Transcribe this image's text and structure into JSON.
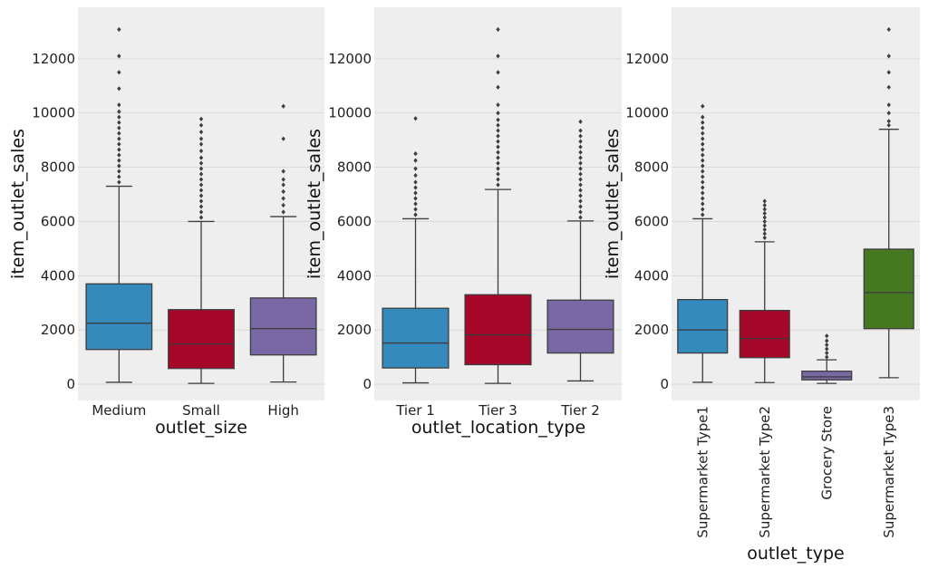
{
  "chart_data": [
    {
      "type": "box",
      "xlabel": "outlet_size",
      "ylabel": "item_outlet_sales",
      "ylim": [
        -600,
        13900
      ],
      "yticks": [
        0,
        2000,
        4000,
        6000,
        8000,
        10000,
        12000
      ],
      "grid": true,
      "categories": [
        "Medium",
        "Small",
        "High"
      ],
      "boxes": [
        {
          "category": "Medium",
          "color": "#348abd",
          "min": 70,
          "q1": 1280,
          "median": 2250,
          "q3": 3700,
          "max": 7300,
          "outliers": [
            7450,
            7650,
            7850,
            8050,
            8250,
            8450,
            8650,
            8850,
            9050,
            9250,
            9450,
            9650,
            9850,
            10050,
            10300,
            10900,
            11500,
            12100,
            13080
          ]
        },
        {
          "category": "Small",
          "color": "#a60628",
          "min": 30,
          "q1": 580,
          "median": 1480,
          "q3": 2750,
          "max": 6000,
          "outliers": [
            6150,
            6350,
            6550,
            6750,
            6950,
            7150,
            7350,
            7550,
            7750,
            7950,
            8150,
            8350,
            8600,
            8850,
            9050,
            9300,
            9550,
            9780
          ]
        },
        {
          "category": "High",
          "color": "#7a68a6",
          "min": 80,
          "q1": 1080,
          "median": 2050,
          "q3": 3180,
          "max": 6180,
          "outliers": [
            6350,
            6600,
            6850,
            7100,
            7350,
            7550,
            7850,
            9050,
            10250
          ]
        }
      ]
    },
    {
      "type": "box",
      "xlabel": "outlet_location_type",
      "ylabel": "item_outlet_sales",
      "ylim": [
        -600,
        13900
      ],
      "yticks": [
        0,
        2000,
        4000,
        6000,
        8000,
        10000,
        12000
      ],
      "grid": true,
      "categories": [
        "Tier 1",
        "Tier 3",
        "Tier 2"
      ],
      "boxes": [
        {
          "category": "Tier 1",
          "color": "#348abd",
          "min": 50,
          "q1": 600,
          "median": 1520,
          "q3": 2800,
          "max": 6100,
          "outliers": [
            6250,
            6450,
            6650,
            6850,
            7050,
            7250,
            7450,
            7700,
            7950,
            8250,
            8500,
            9800
          ]
        },
        {
          "category": "Tier 3",
          "color": "#a60628",
          "min": 30,
          "q1": 720,
          "median": 1820,
          "q3": 3300,
          "max": 7180,
          "outliers": [
            7350,
            7550,
            7750,
            7950,
            8150,
            8350,
            8550,
            8750,
            8950,
            9150,
            9350,
            9550,
            9750,
            10000,
            10300,
            10950,
            11500,
            12100,
            13080
          ]
        },
        {
          "category": "Tier 2",
          "color": "#7a68a6",
          "min": 120,
          "q1": 1150,
          "median": 2020,
          "q3": 3100,
          "max": 6020,
          "outliers": [
            6150,
            6350,
            6550,
            6750,
            6950,
            7150,
            7350,
            7550,
            7750,
            7950,
            8150,
            8350,
            8550,
            8750,
            8950,
            9150,
            9350,
            9680
          ]
        }
      ]
    },
    {
      "type": "box",
      "xlabel": "outlet_type",
      "ylabel": "item_outlet_sales",
      "ylim": [
        -600,
        13900
      ],
      "yticks": [
        0,
        2000,
        4000,
        6000,
        8000,
        10000,
        12000
      ],
      "grid": true,
      "categories": [
        "Supermarket Type1",
        "Supermarket Type2",
        "Grocery Store",
        "Supermarket Type3"
      ],
      "boxes": [
        {
          "category": "Supermarket Type1",
          "color": "#348abd",
          "min": 70,
          "q1": 1150,
          "median": 2000,
          "q3": 3120,
          "max": 6100,
          "outliers": [
            6250,
            6450,
            6650,
            6850,
            7050,
            7250,
            7450,
            7650,
            7850,
            8050,
            8250,
            8450,
            8650,
            8850,
            9050,
            9250,
            9450,
            9650,
            9850,
            10250
          ]
        },
        {
          "category": "Supermarket Type2",
          "color": "#a60628",
          "min": 60,
          "q1": 980,
          "median": 1680,
          "q3": 2720,
          "max": 5250,
          "outliers": [
            5400,
            5550,
            5700,
            5850,
            6000,
            6150,
            6300,
            6450,
            6600,
            6750
          ]
        },
        {
          "category": "Grocery Store",
          "color": "#7a68a6",
          "min": 30,
          "q1": 160,
          "median": 270,
          "q3": 480,
          "max": 900,
          "outliers": [
            1000,
            1150,
            1300,
            1450,
            1600,
            1780
          ]
        },
        {
          "category": "Supermarket Type3",
          "color": "#467821",
          "min": 240,
          "q1": 2050,
          "median": 3380,
          "q3": 4980,
          "max": 9400,
          "outliers": [
            9550,
            9700,
            10000,
            10300,
            10950,
            11500,
            12100,
            13080
          ]
        }
      ]
    }
  ]
}
